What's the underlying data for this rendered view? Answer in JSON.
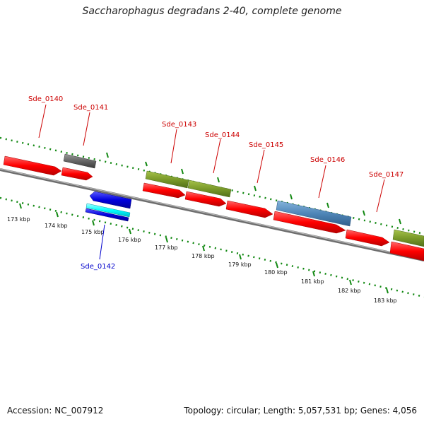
{
  "header": {
    "title": "Saccharophagus degradans 2-40, complete genome"
  },
  "footer": {
    "accession": "Accession: NC_007912",
    "topology": "Topology: circular; Length: 5,057,531 bp; Genes: 4,056"
  },
  "colors": {
    "forward_cds": "#ff0000",
    "pseudo": "#666666",
    "olive_feature": "#7a9a2a",
    "steel_blue_feature": "#4f86b8",
    "reverse_blue": "#0000dd",
    "cyan_feature": "#00ffff",
    "backbone": "#888888",
    "tick": "#118811",
    "label_red": "#cc0000",
    "label_blue": "#0000cc"
  },
  "scale": {
    "unit": "kbp",
    "ticks": [
      "173 kbp",
      "174 kbp",
      "175 kbp",
      "176 kbp",
      "177 kbp",
      "178 kbp",
      "179 kbp",
      "180 kbp",
      "181 kbp",
      "182 kbp",
      "183 kbp"
    ]
  },
  "gene_labels": [
    {
      "id": "g140",
      "text": "Sde_0140",
      "color": "red"
    },
    {
      "id": "g141",
      "text": "Sde_0141",
      "color": "red"
    },
    {
      "id": "g142",
      "text": "Sde_0142",
      "color": "blue"
    },
    {
      "id": "g143",
      "text": "Sde_0143",
      "color": "red"
    },
    {
      "id": "g144",
      "text": "Sde_0144",
      "color": "red"
    },
    {
      "id": "g145",
      "text": "Sde_0145",
      "color": "red"
    },
    {
      "id": "g146",
      "text": "Sde_0146",
      "color": "red"
    },
    {
      "id": "g147",
      "text": "Sde_0147",
      "color": "red"
    }
  ]
}
